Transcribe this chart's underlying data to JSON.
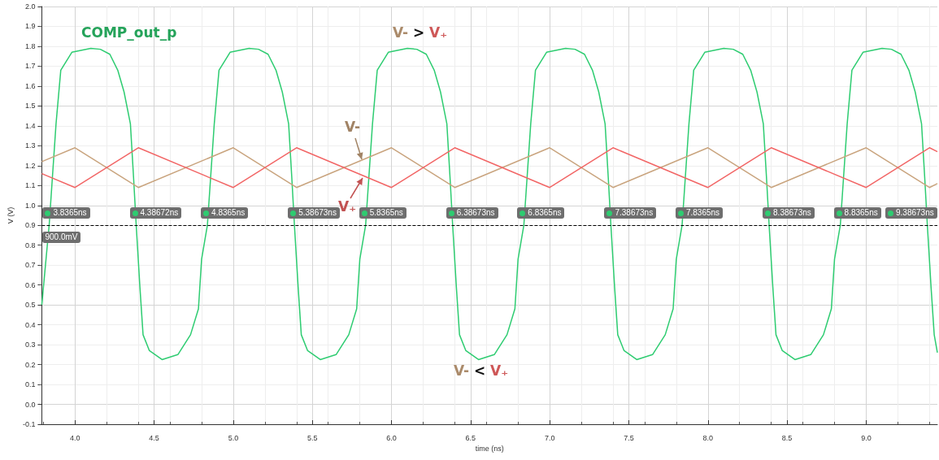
{
  "chart_data": {
    "type": "line",
    "xlabel": "time (ns)",
    "ylabel": "V (V)",
    "xlim": [
      3.79,
      9.45
    ],
    "xticks": [
      {
        "value": 4,
        "label": "4.0"
      },
      4.5,
      {
        "value": 5,
        "label": "5.0"
      },
      5.5,
      {
        "value": 6,
        "label": "6.0"
      },
      6.5,
      {
        "value": 7,
        "label": "7.0"
      },
      7.5,
      {
        "value": 8,
        "label": "8.0"
      },
      8.5,
      {
        "value": 9,
        "label": "9.0"
      }
    ],
    "ylim": [
      -0.1,
      2.0
    ],
    "yticks": [
      -0.1,
      {
        "value": 0,
        "label": "0.0"
      },
      0.1,
      0.2,
      0.3,
      0.4,
      0.5,
      0.6,
      0.7,
      0.8,
      0.9,
      {
        "value": 1,
        "label": "1.0"
      },
      1.1,
      1.2,
      1.3,
      1.4,
      1.5,
      1.6,
      1.7,
      1.8,
      1.9,
      {
        "value": 2,
        "label": "2.0"
      }
    ],
    "grid": true,
    "legend": false,
    "marker": "none",
    "series": [
      {
        "name": "COMP_out_p",
        "color": "#2ecc71",
        "x": [
          3.79,
          3.8365,
          3.88,
          3.91,
          3.98,
          4.1,
          4.16,
          4.22,
          4.27,
          4.31,
          4.35,
          4.37,
          4.3867,
          4.41,
          4.43,
          4.47,
          4.55,
          4.65,
          4.73,
          4.78,
          4.8,
          4.8365,
          4.88,
          4.91,
          4.98,
          5.1,
          5.16,
          5.22,
          5.27,
          5.31,
          5.35,
          5.37,
          5.3867,
          5.41,
          5.43,
          5.47,
          5.55,
          5.65,
          5.73,
          5.78,
          5.8,
          5.8365,
          5.88,
          5.91,
          5.98,
          6.1,
          6.16,
          6.22,
          6.27,
          6.31,
          6.35,
          6.37,
          6.3867,
          6.41,
          6.43,
          6.47,
          6.55,
          6.65,
          6.73,
          6.78,
          6.8,
          6.8365,
          6.88,
          6.91,
          6.98,
          7.1,
          7.16,
          7.22,
          7.27,
          7.31,
          7.35,
          7.37,
          7.3867,
          7.41,
          7.43,
          7.47,
          7.55,
          7.65,
          7.73,
          7.78,
          7.8,
          7.8365,
          7.88,
          7.91,
          7.98,
          8.1,
          8.16,
          8.22,
          8.27,
          8.31,
          8.35,
          8.37,
          8.3867,
          8.41,
          8.43,
          8.47,
          8.55,
          8.65,
          8.73,
          8.78,
          8.8,
          8.8365,
          8.88,
          8.91,
          8.98,
          9.1,
          9.16,
          9.22,
          9.27,
          9.31,
          9.35,
          9.37,
          9.3867,
          9.41,
          9.43,
          9.45
        ],
        "values": [
          0.5,
          0.9,
          1.41,
          1.68,
          1.77,
          1.79,
          1.785,
          1.76,
          1.68,
          1.57,
          1.41,
          1.14,
          0.9,
          0.59,
          0.35,
          0.27,
          0.225,
          0.25,
          0.35,
          0.48,
          0.73,
          0.9,
          1.41,
          1.68,
          1.77,
          1.79,
          1.785,
          1.76,
          1.68,
          1.57,
          1.41,
          1.14,
          0.9,
          0.59,
          0.35,
          0.27,
          0.225,
          0.25,
          0.35,
          0.48,
          0.73,
          0.9,
          1.41,
          1.68,
          1.77,
          1.79,
          1.785,
          1.76,
          1.68,
          1.57,
          1.41,
          1.14,
          0.9,
          0.59,
          0.35,
          0.27,
          0.225,
          0.25,
          0.35,
          0.48,
          0.73,
          0.9,
          1.41,
          1.68,
          1.77,
          1.79,
          1.785,
          1.76,
          1.68,
          1.57,
          1.41,
          1.14,
          0.9,
          0.59,
          0.35,
          0.27,
          0.225,
          0.25,
          0.35,
          0.48,
          0.73,
          0.9,
          1.41,
          1.68,
          1.77,
          1.79,
          1.785,
          1.76,
          1.68,
          1.57,
          1.41,
          1.14,
          0.9,
          0.59,
          0.35,
          0.27,
          0.225,
          0.25,
          0.35,
          0.48,
          0.73,
          0.9,
          1.41,
          1.68,
          1.77,
          1.79,
          1.785,
          1.76,
          1.68,
          1.57,
          1.41,
          1.14,
          0.9,
          0.59,
          0.35,
          0.26
        ]
      },
      {
        "name": "V-",
        "color": "#c9a47e",
        "x": [
          3.79,
          4.0,
          4.4,
          5.0,
          5.4,
          6.0,
          6.4,
          7.0,
          7.4,
          8.0,
          8.4,
          9.0,
          9.4,
          9.45
        ],
        "values": [
          1.22,
          1.29,
          1.09,
          1.29,
          1.09,
          1.29,
          1.09,
          1.29,
          1.09,
          1.29,
          1.09,
          1.29,
          1.09,
          1.11
        ]
      },
      {
        "name": "V₊",
        "color": "#f26666",
        "x": [
          3.79,
          4.0,
          4.4,
          5.0,
          5.4,
          6.0,
          6.4,
          7.0,
          7.4,
          8.0,
          8.4,
          9.0,
          9.4,
          9.45
        ],
        "values": [
          1.16,
          1.09,
          1.29,
          1.09,
          1.29,
          1.09,
          1.29,
          1.09,
          1.29,
          1.09,
          1.29,
          1.09,
          1.29,
          1.27
        ]
      }
    ],
    "ref_lines": [
      {
        "axis": "y",
        "value": 0.9,
        "color": "#000000",
        "line_style": "dashed"
      }
    ],
    "annotations": [
      {
        "text": "3.8365ns",
        "x": 3.8365,
        "y": 0.9
      },
      {
        "text": "900.0mV",
        "x": 3.8365,
        "y": 0.9
      },
      {
        "text": "4.38672ns",
        "x": 4.38672,
        "y": 0.9
      },
      {
        "text": "4.8365ns",
        "x": 4.8365,
        "y": 0.9
      },
      {
        "text": "5.38673ns",
        "x": 5.38673,
        "y": 0.9
      },
      {
        "text": "5.8365ns",
        "x": 5.8365,
        "y": 0.9
      },
      {
        "text": "6.38673ns",
        "x": 6.38673,
        "y": 0.9
      },
      {
        "text": "6.8365ns",
        "x": 6.8365,
        "y": 0.9
      },
      {
        "text": "7.38673ns",
        "x": 7.38673,
        "y": 0.9
      },
      {
        "text": "7.8365ns",
        "x": 7.8365,
        "y": 0.9
      },
      {
        "text": "8.38673ns",
        "x": 8.38673,
        "y": 0.9
      },
      {
        "text": "8.8365ns",
        "x": 8.8365,
        "y": 0.9
      },
      {
        "text": "9.38673ns",
        "x": 9.38673,
        "y": 0.9
      },
      "V- > V₊",
      "V- < V₊"
    ]
  }
}
